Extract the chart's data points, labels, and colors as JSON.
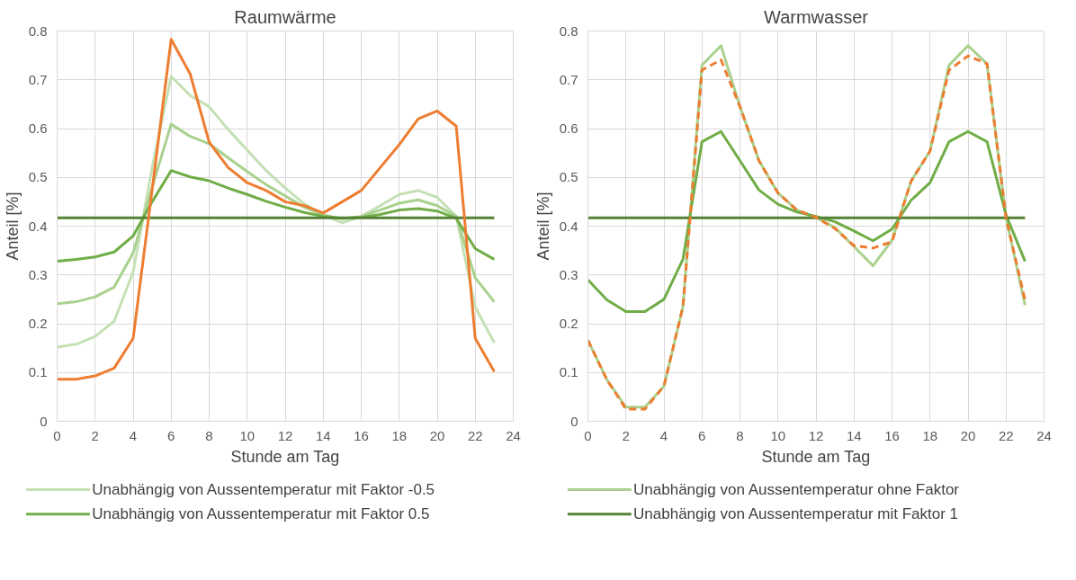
{
  "chart_data": [
    {
      "type": "line",
      "title": "Raumwärme",
      "xlabel": "Stunde am Tag",
      "ylabel": "Anteil [%]",
      "x": [
        0,
        1,
        2,
        3,
        4,
        5,
        6,
        7,
        8,
        9,
        10,
        11,
        12,
        13,
        14,
        15,
        16,
        17,
        18,
        19,
        20,
        21,
        22,
        23
      ],
      "xlim": [
        0,
        24
      ],
      "xticks": [
        0,
        2,
        4,
        6,
        8,
        10,
        12,
        14,
        16,
        18,
        20,
        22,
        24
      ],
      "ylim": [
        0,
        0.8
      ],
      "yticks": [
        0,
        0.1,
        0.2,
        0.3,
        0.4,
        0.5,
        0.6,
        0.7,
        0.8
      ],
      "grid": true,
      "legend": "bottom",
      "marker": "none",
      "line_style": "solid",
      "series": [
        {
          "name": "Unabhängig von Aussentemperatur mit Faktor -0.5",
          "color": "#c5e0b4",
          "values": [
            0.152,
            0.158,
            0.174,
            0.205,
            0.306,
            0.52,
            0.707,
            0.668,
            0.645,
            0.598,
            0.556,
            0.514,
            0.478,
            0.446,
            0.423,
            0.407,
            0.42,
            0.442,
            0.465,
            0.473,
            0.459,
            0.42,
            0.234,
            0.161
          ]
        },
        {
          "name": "Unabhängig von Aussentemperatur ohne Faktor",
          "color": "#a9d18e",
          "values": [
            0.241,
            0.245,
            0.255,
            0.275,
            0.345,
            0.48,
            0.609,
            0.584,
            0.569,
            0.54,
            0.512,
            0.485,
            0.462,
            0.439,
            0.423,
            0.415,
            0.42,
            0.433,
            0.447,
            0.454,
            0.442,
            0.42,
            0.294,
            0.245
          ]
        },
        {
          "name": "Unabhängig von Aussentemperatur mit Faktor 0.5",
          "color": "#70ad47",
          "values": [
            0.328,
            0.332,
            0.337,
            0.347,
            0.38,
            0.45,
            0.514,
            0.501,
            0.493,
            0.478,
            0.465,
            0.451,
            0.439,
            0.428,
            0.42,
            0.416,
            0.418,
            0.424,
            0.433,
            0.436,
            0.431,
            0.416,
            0.354,
            0.332
          ]
        },
        {
          "name": "Unabhängig von Aussentemperatur mit Faktor 1",
          "color": "#548235",
          "values": [
            0.417,
            0.417,
            0.417,
            0.417,
            0.417,
            0.417,
            0.417,
            0.417,
            0.417,
            0.417,
            0.417,
            0.417,
            0.417,
            0.417,
            0.417,
            0.417,
            0.417,
            0.417,
            0.417,
            0.417,
            0.417,
            0.417,
            0.417,
            0.417
          ]
        },
        {
          "color": "#ed7d31",
          "values": [
            0.086,
            0.086,
            0.093,
            0.109,
            0.17,
            0.475,
            0.783,
            0.712,
            0.572,
            0.52,
            0.489,
            0.473,
            0.45,
            0.442,
            0.427,
            0.45,
            0.473,
            0.52,
            0.567,
            0.62,
            0.636,
            0.605,
            0.17,
            0.102
          ]
        }
      ]
    },
    {
      "type": "line",
      "title": "Warmwasser",
      "xlabel": "Stunde am Tag",
      "ylabel": "Anteil [%]",
      "x": [
        0,
        1,
        2,
        3,
        4,
        5,
        6,
        7,
        8,
        9,
        10,
        11,
        12,
        13,
        14,
        15,
        16,
        17,
        18,
        19,
        20,
        21,
        22,
        23
      ],
      "xlim": [
        0,
        24
      ],
      "xticks": [
        0,
        2,
        4,
        6,
        8,
        10,
        12,
        14,
        16,
        18,
        20,
        22,
        24
      ],
      "ylim": [
        0,
        0.8
      ],
      "yticks": [
        0,
        0.1,
        0.2,
        0.3,
        0.4,
        0.5,
        0.6,
        0.7,
        0.8
      ],
      "grid": true,
      "marker": "none",
      "line_style": "solid",
      "series": [
        {
          "color": "#a9d18e",
          "values": [
            0.166,
            0.085,
            0.029,
            0.029,
            0.072,
            0.235,
            0.73,
            0.77,
            0.645,
            0.534,
            0.468,
            0.433,
            0.418,
            0.397,
            0.358,
            0.319,
            0.371,
            0.492,
            0.554,
            0.73,
            0.77,
            0.733,
            0.417,
            0.238
          ]
        },
        {
          "color": "#70ad47",
          "values": [
            0.29,
            0.249,
            0.225,
            0.225,
            0.25,
            0.332,
            0.573,
            0.594,
            0.534,
            0.474,
            0.445,
            0.429,
            0.42,
            0.409,
            0.39,
            0.37,
            0.394,
            0.453,
            0.489,
            0.573,
            0.594,
            0.573,
            0.423,
            0.328
          ]
        },
        {
          "color": "#548235",
          "values": [
            0.417,
            0.417,
            0.417,
            0.417,
            0.417,
            0.417,
            0.417,
            0.417,
            0.417,
            0.417,
            0.417,
            0.417,
            0.417,
            0.417,
            0.417,
            0.417,
            0.417,
            0.417,
            0.417,
            0.417,
            0.417,
            0.417,
            0.417,
            0.417
          ]
        },
        {
          "color": "#ed7d31",
          "line_style": "dashed",
          "values": [
            0.166,
            0.085,
            0.025,
            0.025,
            0.072,
            0.235,
            0.72,
            0.741,
            0.645,
            0.534,
            0.468,
            0.433,
            0.418,
            0.395,
            0.36,
            0.355,
            0.368,
            0.492,
            0.554,
            0.72,
            0.749,
            0.733,
            0.417,
            0.248
          ]
        }
      ]
    }
  ]
}
